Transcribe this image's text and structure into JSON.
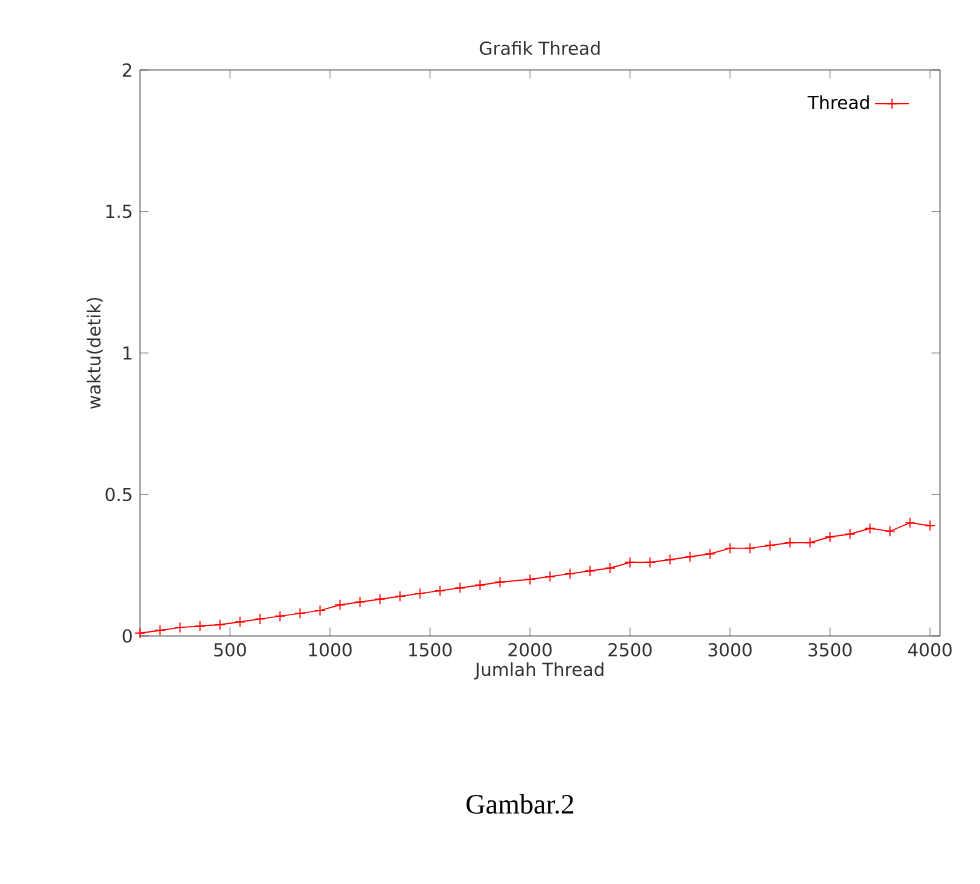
{
  "chart_data": {
    "type": "line",
    "title": "Grafik Thread",
    "xlabel": "Jumlah Thread",
    "ylabel": "waktu(detik)",
    "x": [
      50,
      150,
      250,
      350,
      450,
      550,
      650,
      750,
      850,
      950,
      1050,
      1150,
      1250,
      1350,
      1450,
      1550,
      1650,
      1750,
      1850,
      2000,
      2100,
      2200,
      2300,
      2400,
      2500,
      2600,
      2700,
      2800,
      2900,
      3000,
      3100,
      3200,
      3300,
      3400,
      3500,
      3600,
      3700,
      3800,
      3900,
      4000
    ],
    "series": [
      {
        "name": "Thread",
        "color": "#ff0000",
        "values": [
          0.01,
          0.02,
          0.03,
          0.035,
          0.04,
          0.05,
          0.06,
          0.07,
          0.08,
          0.09,
          0.11,
          0.12,
          0.13,
          0.14,
          0.15,
          0.16,
          0.17,
          0.18,
          0.19,
          0.2,
          0.21,
          0.22,
          0.23,
          0.24,
          0.26,
          0.26,
          0.27,
          0.28,
          0.29,
          0.31,
          0.31,
          0.32,
          0.33,
          0.33,
          0.35,
          0.36,
          0.38,
          0.37,
          0.4,
          0.39
        ]
      }
    ],
    "xlim": [
      50,
      4050
    ],
    "ylim": [
      0,
      2
    ],
    "xticks": [
      500,
      1000,
      1500,
      2000,
      2500,
      3000,
      3500,
      4000
    ],
    "yticks": [
      0,
      0.5,
      1,
      1.5,
      2
    ],
    "legend": "top right",
    "marker": "cross",
    "line_style": "solid",
    "grid": false,
    "annotations": [
      "Gambar.2"
    ]
  }
}
